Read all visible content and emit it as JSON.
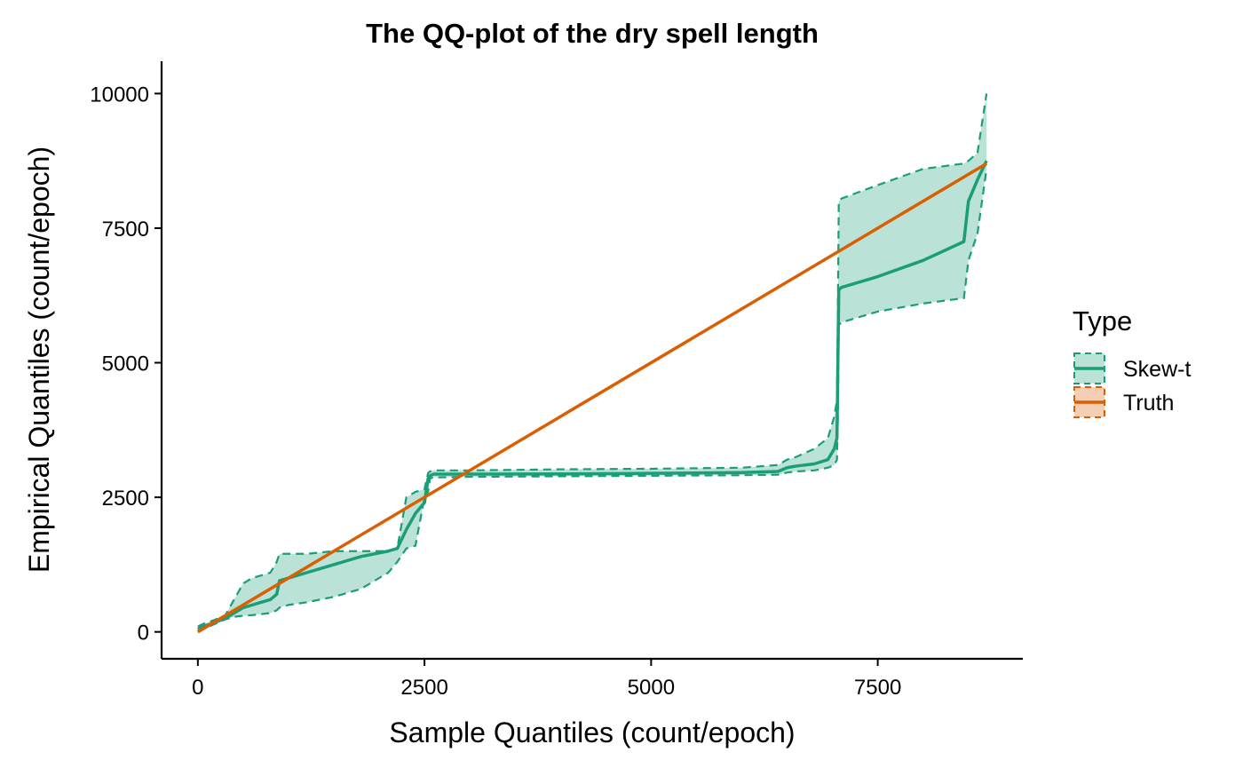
{
  "chart_data": {
    "type": "line",
    "title": "The QQ-plot of the dry spell length",
    "xlabel": "Sample Quantiles (count/epoch)",
    "ylabel": "Empirical Quantiles (count/epoch)",
    "xlim": [
      -400,
      9100
    ],
    "ylim": [
      -500,
      10600
    ],
    "xticks": [
      0,
      2500,
      5000,
      7500
    ],
    "xtick_labels": [
      "0",
      "2500",
      "5000",
      "7500"
    ],
    "yticks": [
      0,
      2500,
      5000,
      7500,
      10000
    ],
    "ytick_labels": [
      "0",
      "2500",
      "5000",
      "7500",
      "10000"
    ],
    "grid": false,
    "legend": {
      "title": "Type",
      "position": "right",
      "entries": [
        {
          "label": "Skew-t",
          "color": "#1b9e77"
        },
        {
          "label": "Truth",
          "color": "#d95f02"
        }
      ]
    },
    "series": [
      {
        "name": "Skew-t",
        "color": "#1b9e77",
        "fill": "#1b9e77",
        "x": [
          0,
          60,
          150,
          300,
          400,
          500,
          600,
          700,
          800,
          870,
          900,
          1000,
          1200,
          1500,
          1800,
          2100,
          2200,
          2300,
          2400,
          2500,
          2540,
          2560,
          2600,
          3000,
          4000,
          5000,
          6000,
          6400,
          6500,
          6600,
          6800,
          6950,
          7020,
          7050,
          7060,
          7070,
          7100,
          7500,
          8000,
          8450,
          8500,
          8600,
          8700
        ],
        "y": [
          50,
          100,
          150,
          250,
          350,
          450,
          500,
          550,
          600,
          700,
          950,
          1000,
          1100,
          1250,
          1400,
          1500,
          1550,
          1900,
          2200,
          2400,
          2850,
          2900,
          2930,
          2930,
          2935,
          2945,
          2960,
          2980,
          3050,
          3080,
          3120,
          3200,
          3400,
          3600,
          5000,
          6350,
          6400,
          6600,
          6900,
          7250,
          8000,
          8400,
          8750
        ],
        "lower": [
          0,
          50,
          120,
          230,
          280,
          300,
          310,
          330,
          350,
          400,
          450,
          500,
          550,
          650,
          800,
          1100,
          1300,
          1550,
          1600,
          2500,
          2600,
          2850,
          2870,
          2880,
          2890,
          2900,
          2910,
          2920,
          2960,
          2980,
          3000,
          3050,
          3100,
          3200,
          4000,
          5700,
          5750,
          5950,
          6100,
          6200,
          6900,
          7400,
          8600
        ],
        "upper": [
          100,
          150,
          200,
          300,
          600,
          900,
          1000,
          1050,
          1100,
          1300,
          1450,
          1450,
          1450,
          1500,
          1500,
          1500,
          1550,
          2500,
          2600,
          2650,
          2950,
          2980,
          3000,
          3000,
          3020,
          3030,
          3050,
          3100,
          3200,
          3250,
          3400,
          3600,
          4000,
          4300,
          6000,
          8000,
          8050,
          8300,
          8600,
          8700,
          8750,
          8900,
          10000
        ]
      },
      {
        "name": "Truth",
        "color": "#d95f02",
        "x": [
          0,
          8700
        ],
        "y": [
          0,
          8700
        ]
      }
    ]
  }
}
